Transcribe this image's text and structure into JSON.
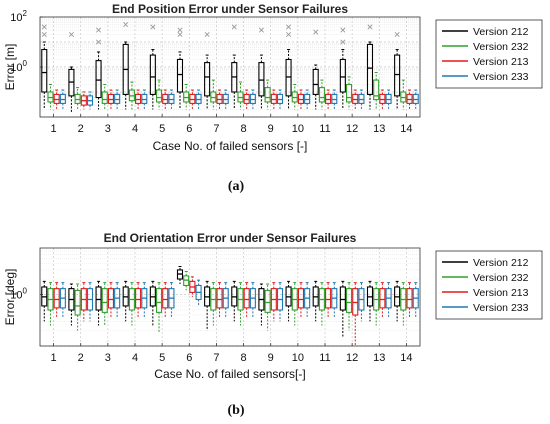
{
  "chart_data": [
    {
      "type": "box",
      "title": "End Position Error under Sensor Failures",
      "xlabel": "Case No. of failed sensors [-]",
      "ylabel": "Error [m]",
      "yscale": "log",
      "ylim": [
        0.01,
        100
      ],
      "yticks": [
        {
          "value": 1,
          "label": "10^0"
        },
        {
          "value": 100,
          "label": "10^2"
        }
      ],
      "categories": [
        "1",
        "2",
        "3",
        "4",
        "5",
        "6",
        "7",
        "8",
        "9",
        "10",
        "11",
        "12",
        "13",
        "14"
      ],
      "grid": true,
      "legend_position": "right",
      "panel_label": "(a)",
      "series": [
        {
          "name": "Version 212",
          "color": "#000000",
          "medians": [
            0.6,
            0.25,
            0.3,
            0.8,
            0.4,
            0.5,
            0.4,
            0.4,
            0.3,
            0.4,
            0.2,
            0.4,
            0.9,
            0.5
          ],
          "q1": [
            0.1,
            0.07,
            0.06,
            0.08,
            0.08,
            0.1,
            0.07,
            0.1,
            0.07,
            0.07,
            0.08,
            0.1,
            0.08,
            0.07
          ],
          "q3": [
            5,
            0.8,
            1.8,
            8,
            3,
            2,
            1.5,
            1.5,
            1.5,
            2,
            0.8,
            2,
            8,
            3
          ],
          "whisker_low": [
            0.02,
            0.015,
            0.02,
            0.02,
            0.02,
            0.02,
            0.02,
            0.02,
            0.02,
            0.02,
            0.02,
            0.02,
            0.02,
            0.02
          ],
          "whisker_high": [
            10,
            1,
            4,
            10,
            5,
            4,
            3,
            3,
            3,
            5,
            1.2,
            5,
            10,
            5
          ],
          "outliers": [
            [
              40,
              20
            ],
            [
              20
            ],
            [
              30,
              10
            ],
            [
              50
            ],
            [
              40
            ],
            [
              30,
              20
            ],
            [
              20
            ],
            [
              40
            ],
            [
              30
            ],
            [
              40,
              20
            ],
            [
              25
            ],
            [
              30,
              10
            ],
            [
              40
            ],
            [
              20
            ]
          ]
        },
        {
          "name": "Version 232",
          "color": "#33a02c",
          "medians": [
            0.06,
            0.05,
            0.05,
            0.07,
            0.06,
            0.06,
            0.06,
            0.06,
            0.06,
            0.06,
            0.06,
            0.06,
            0.07,
            0.06
          ],
          "q1": [
            0.04,
            0.035,
            0.035,
            0.045,
            0.04,
            0.04,
            0.04,
            0.04,
            0.04,
            0.04,
            0.04,
            0.04,
            0.05,
            0.04
          ],
          "q3": [
            0.1,
            0.08,
            0.1,
            0.12,
            0.12,
            0.1,
            0.1,
            0.1,
            0.15,
            0.1,
            0.15,
            0.2,
            0.3,
            0.1
          ],
          "whisker_low": [
            0.02,
            0.02,
            0.02,
            0.02,
            0.02,
            0.02,
            0.02,
            0.02,
            0.02,
            0.02,
            0.02,
            0.02,
            0.02,
            0.02
          ],
          "whisker_high": [
            0.2,
            0.15,
            0.2,
            0.25,
            0.3,
            0.2,
            0.3,
            0.25,
            0.3,
            0.2,
            0.3,
            0.4,
            0.6,
            0.3
          ]
        },
        {
          "name": "Version 213",
          "color": "#e31a1c",
          "medians": [
            0.05,
            0.045,
            0.05,
            0.05,
            0.05,
            0.05,
            0.05,
            0.05,
            0.05,
            0.05,
            0.05,
            0.05,
            0.05,
            0.05
          ],
          "q1": [
            0.035,
            0.03,
            0.035,
            0.035,
            0.035,
            0.035,
            0.035,
            0.035,
            0.035,
            0.035,
            0.035,
            0.035,
            0.035,
            0.035
          ],
          "q3": [
            0.08,
            0.07,
            0.08,
            0.08,
            0.08,
            0.08,
            0.08,
            0.08,
            0.08,
            0.08,
            0.08,
            0.08,
            0.08,
            0.08
          ],
          "whisker_low": [
            0.02,
            0.02,
            0.02,
            0.02,
            0.02,
            0.02,
            0.02,
            0.02,
            0.02,
            0.02,
            0.02,
            0.02,
            0.02,
            0.02
          ],
          "whisker_high": [
            0.12,
            0.1,
            0.12,
            0.12,
            0.12,
            0.12,
            0.12,
            0.12,
            0.12,
            0.12,
            0.12,
            0.12,
            0.12,
            0.12
          ]
        },
        {
          "name": "Version 233",
          "color": "#1f78b4",
          "medians": [
            0.05,
            0.045,
            0.05,
            0.05,
            0.05,
            0.05,
            0.05,
            0.05,
            0.05,
            0.05,
            0.05,
            0.05,
            0.05,
            0.05
          ],
          "q1": [
            0.035,
            0.03,
            0.035,
            0.035,
            0.035,
            0.035,
            0.035,
            0.035,
            0.035,
            0.035,
            0.035,
            0.035,
            0.035,
            0.035
          ],
          "q3": [
            0.08,
            0.07,
            0.08,
            0.08,
            0.08,
            0.08,
            0.08,
            0.08,
            0.08,
            0.08,
            0.08,
            0.08,
            0.08,
            0.08
          ],
          "whisker_low": [
            0.02,
            0.02,
            0.02,
            0.02,
            0.02,
            0.02,
            0.02,
            0.02,
            0.02,
            0.02,
            0.02,
            0.02,
            0.02,
            0.02
          ],
          "whisker_high": [
            0.12,
            0.1,
            0.12,
            0.12,
            0.12,
            0.12,
            0.12,
            0.12,
            0.12,
            0.12,
            0.12,
            0.12,
            0.12,
            0.12
          ]
        }
      ]
    },
    {
      "type": "box",
      "title": "End Orientation Error under Sensor Failures",
      "xlabel": "Case No. of failed sensors[-]",
      "ylabel": "Error [deg]",
      "yscale": "log",
      "ylim": [
        0.1,
        8
      ],
      "yticks": [
        {
          "value": 1,
          "label": "10^0"
        }
      ],
      "categories": [
        "1",
        "2",
        "3",
        "4",
        "5",
        "6",
        "7",
        "8",
        "9",
        "10",
        "11",
        "12",
        "13",
        "14"
      ],
      "grid": true,
      "legend_position": "right",
      "panel_label": "(b)",
      "series": [
        {
          "name": "Version 212",
          "color": "#000000",
          "medians": [
            0.9,
            0.8,
            0.8,
            0.9,
            0.9,
            2.5,
            0.9,
            0.9,
            0.8,
            0.9,
            0.9,
            0.8,
            0.9,
            0.9
          ],
          "q1": [
            0.6,
            0.5,
            0.5,
            0.6,
            0.6,
            2.0,
            0.6,
            0.6,
            0.5,
            0.6,
            0.6,
            0.5,
            0.6,
            0.6
          ],
          "q3": [
            1.4,
            1.3,
            1.4,
            1.4,
            1.4,
            3.0,
            1.4,
            1.4,
            1.3,
            1.4,
            1.4,
            1.4,
            1.4,
            1.4
          ],
          "whisker_low": [
            0.3,
            0.25,
            0.25,
            0.3,
            0.25,
            1.6,
            0.2,
            0.3,
            0.25,
            0.3,
            0.3,
            0.15,
            0.3,
            0.3
          ],
          "whisker_high": [
            1.8,
            1.6,
            1.8,
            1.8,
            1.8,
            3.5,
            1.8,
            1.8,
            1.6,
            1.8,
            1.8,
            1.8,
            1.8,
            1.8
          ]
        },
        {
          "name": "Version 232",
          "color": "#33a02c",
          "medians": [
            0.8,
            0.6,
            0.7,
            0.8,
            0.7,
            1.9,
            0.8,
            0.8,
            0.7,
            0.8,
            0.8,
            0.7,
            0.8,
            0.8
          ],
          "q1": [
            0.5,
            0.4,
            0.45,
            0.5,
            0.45,
            1.5,
            0.5,
            0.5,
            0.45,
            0.5,
            0.5,
            0.45,
            0.5,
            0.5
          ],
          "q3": [
            1.3,
            1.2,
            1.3,
            1.3,
            1.3,
            2.3,
            1.3,
            1.3,
            1.2,
            1.3,
            1.3,
            1.3,
            1.3,
            1.3
          ],
          "whisker_low": [
            0.25,
            0.2,
            0.25,
            0.25,
            0.18,
            1.2,
            0.25,
            0.25,
            0.2,
            0.25,
            0.25,
            0.2,
            0.25,
            0.25
          ],
          "whisker_high": [
            1.7,
            1.6,
            1.7,
            1.7,
            1.7,
            2.8,
            1.7,
            1.7,
            1.6,
            1.7,
            1.7,
            1.7,
            1.7,
            1.7
          ]
        },
        {
          "name": "Version 213",
          "color": "#e31a1c",
          "medians": [
            0.8,
            0.8,
            0.8,
            0.8,
            0.8,
            1.4,
            0.8,
            0.8,
            0.8,
            0.8,
            0.8,
            0.7,
            0.8,
            0.8
          ],
          "q1": [
            0.55,
            0.5,
            0.55,
            0.55,
            0.55,
            1.1,
            0.55,
            0.55,
            0.5,
            0.55,
            0.55,
            0.4,
            0.55,
            0.55
          ],
          "q3": [
            1.3,
            1.3,
            1.3,
            1.3,
            1.3,
            1.8,
            1.3,
            1.3,
            1.3,
            1.3,
            1.3,
            1.3,
            1.3,
            1.3
          ],
          "whisker_low": [
            0.35,
            0.3,
            0.35,
            0.35,
            0.35,
            0.9,
            0.35,
            0.35,
            0.3,
            0.35,
            0.35,
            0.1,
            0.35,
            0.35
          ],
          "whisker_high": [
            1.7,
            1.7,
            1.7,
            1.7,
            1.7,
            2.2,
            1.7,
            1.7,
            1.7,
            1.7,
            1.7,
            1.7,
            1.7,
            1.7
          ]
        },
        {
          "name": "Version 233",
          "color": "#1f78b4",
          "medians": [
            0.85,
            0.8,
            0.85,
            0.85,
            0.85,
            1.1,
            0.85,
            0.85,
            0.8,
            0.85,
            0.85,
            0.8,
            0.85,
            0.85
          ],
          "q1": [
            0.55,
            0.5,
            0.55,
            0.55,
            0.55,
            0.8,
            0.55,
            0.55,
            0.5,
            0.55,
            0.55,
            0.5,
            0.55,
            0.55
          ],
          "q3": [
            1.3,
            1.3,
            1.3,
            1.3,
            1.3,
            1.5,
            1.3,
            1.3,
            1.3,
            1.3,
            1.3,
            1.3,
            1.3,
            1.3
          ],
          "whisker_low": [
            0.35,
            0.3,
            0.35,
            0.35,
            0.35,
            0.6,
            0.35,
            0.35,
            0.3,
            0.35,
            0.35,
            0.3,
            0.35,
            0.35
          ],
          "whisker_high": [
            1.7,
            1.7,
            1.7,
            1.7,
            1.7,
            1.9,
            1.7,
            1.7,
            1.7,
            1.7,
            1.7,
            1.7,
            1.7,
            1.7
          ]
        }
      ]
    }
  ]
}
